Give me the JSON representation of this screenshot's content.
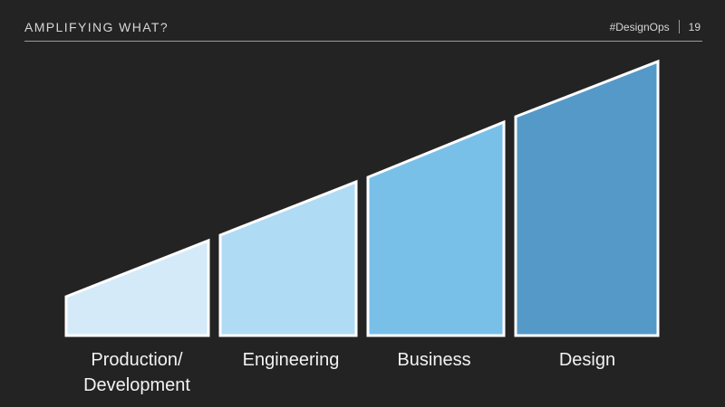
{
  "header": {
    "title": "AMPLIFYING WHAT?",
    "tag": "#DesignOps",
    "page_number": "19"
  },
  "diagram": {
    "stages": [
      {
        "label_line1": "Production/",
        "label_line2": "Development",
        "color": "#d4eaf9"
      },
      {
        "label_line1": "Engineering",
        "label_line2": "",
        "color": "#b0dbf4"
      },
      {
        "label_line1": "Business",
        "label_line2": "",
        "color": "#79c0e9"
      },
      {
        "label_line1": "Design",
        "label_line2": "",
        "color": "#5599c9"
      }
    ],
    "outline_color": "#ffffff"
  }
}
